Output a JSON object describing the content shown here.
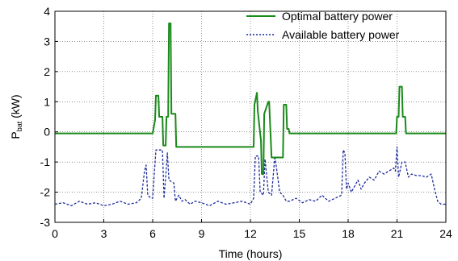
{
  "chart_data": {
    "type": "line",
    "title": "",
    "xlabel": "Time (hours)",
    "ylabel": "P",
    "ylabel_subscript": "bat",
    "ylabel_unit": " (kW)",
    "xlim": [
      0,
      24
    ],
    "ylim": [
      -3,
      4
    ],
    "xticks": [
      0,
      3,
      6,
      9,
      12,
      15,
      18,
      21,
      24
    ],
    "yticks": [
      -3,
      -2,
      -1,
      0,
      1,
      2,
      3,
      4
    ],
    "grid": true,
    "legend_position": "top-right",
    "series": [
      {
        "name": "Optimal  battery  power",
        "color": "#1a8a1a",
        "style": "solid",
        "x": [
          0,
          6.0,
          6.15,
          6.2,
          6.35,
          6.4,
          6.6,
          6.65,
          6.8,
          6.85,
          6.95,
          7.0,
          7.1,
          7.15,
          7.4,
          7.45,
          12.2,
          12.25,
          12.4,
          12.45,
          12.65,
          12.7,
          12.8,
          12.85,
          13.1,
          13.15,
          13.3,
          13.35,
          14.0,
          14.05,
          14.2,
          14.25,
          14.35,
          14.4,
          20.95,
          21.0,
          21.1,
          21.15,
          21.3,
          21.35,
          21.5,
          21.55,
          24
        ],
        "y": [
          -0.05,
          -0.05,
          0.4,
          1.2,
          1.2,
          0.5,
          0.5,
          -0.45,
          -0.45,
          0.5,
          0.5,
          3.6,
          3.6,
          0.6,
          0.6,
          -0.5,
          -0.5,
          0.9,
          1.3,
          0.7,
          -0.3,
          -1.4,
          -1.4,
          0.6,
          1.0,
          1.0,
          -0.85,
          -0.85,
          -0.85,
          0.9,
          0.9,
          0.1,
          0.1,
          -0.05,
          -0.05,
          0.5,
          0.5,
          1.5,
          1.5,
          0.5,
          0.5,
          -0.05,
          -0.05
        ]
      },
      {
        "name": "Available  battery  power",
        "color": "#1c2a9c",
        "style": "dashed",
        "x": [
          0,
          0.5,
          1,
          1.5,
          2,
          2.5,
          3,
          3.5,
          4,
          4.5,
          5,
          5.3,
          5.5,
          5.6,
          5.7,
          5.9,
          6.0,
          6.2,
          6.6,
          6.7,
          6.8,
          6.9,
          7.0,
          7.3,
          7.4,
          7.6,
          7.8,
          8.0,
          8.3,
          8.6,
          9,
          9.5,
          10,
          10.5,
          11,
          11.5,
          12.0,
          12.2,
          12.3,
          12.5,
          12.6,
          12.8,
          12.9,
          13.1,
          13.3,
          13.5,
          13.8,
          14.0,
          14.2,
          14.4,
          14.8,
          15.2,
          15.6,
          16.0,
          16.4,
          16.8,
          17.2,
          17.6,
          17.7,
          17.8,
          17.9,
          18.0,
          18.2,
          18.4,
          18.6,
          18.8,
          19.0,
          19.3,
          19.6,
          19.9,
          20.2,
          20.5,
          20.8,
          20.9,
          21.0,
          21.1,
          21.3,
          21.5,
          21.7,
          21.9,
          22.2,
          22.5,
          22.8,
          23.1,
          23.3,
          23.5,
          23.7,
          24
        ],
        "y": [
          -2.4,
          -2.35,
          -2.45,
          -2.3,
          -2.4,
          -2.35,
          -2.45,
          -2.4,
          -2.3,
          -2.4,
          -2.35,
          -2.2,
          -1.3,
          -1.1,
          -2.1,
          -2.2,
          -2.2,
          -0.6,
          -0.6,
          -2.2,
          -1.5,
          -0.7,
          -1.6,
          -1.7,
          -2.3,
          -2.1,
          -2.3,
          -2.25,
          -2.4,
          -2.3,
          -2.35,
          -2.45,
          -2.3,
          -2.4,
          -2.35,
          -2.3,
          -2.4,
          -2.2,
          -0.8,
          -0.8,
          -2.0,
          -2.1,
          -0.9,
          -2.0,
          -2.1,
          -0.8,
          -2.0,
          -2.1,
          -2.3,
          -2.3,
          -2.2,
          -2.35,
          -2.25,
          -2.3,
          -2.1,
          -2.3,
          -2.2,
          -2.1,
          -0.6,
          -0.7,
          -1.9,
          -1.7,
          -2.0,
          -1.8,
          -1.6,
          -1.9,
          -1.7,
          -1.5,
          -1.6,
          -1.3,
          -1.4,
          -1.3,
          -1.2,
          -1.3,
          -0.5,
          -1.5,
          -1.0,
          -1.0,
          -1.5,
          -1.4,
          -1.45,
          -1.45,
          -1.5,
          -1.4,
          -1.9,
          -2.3,
          -2.4,
          -2.4
        ]
      }
    ]
  }
}
